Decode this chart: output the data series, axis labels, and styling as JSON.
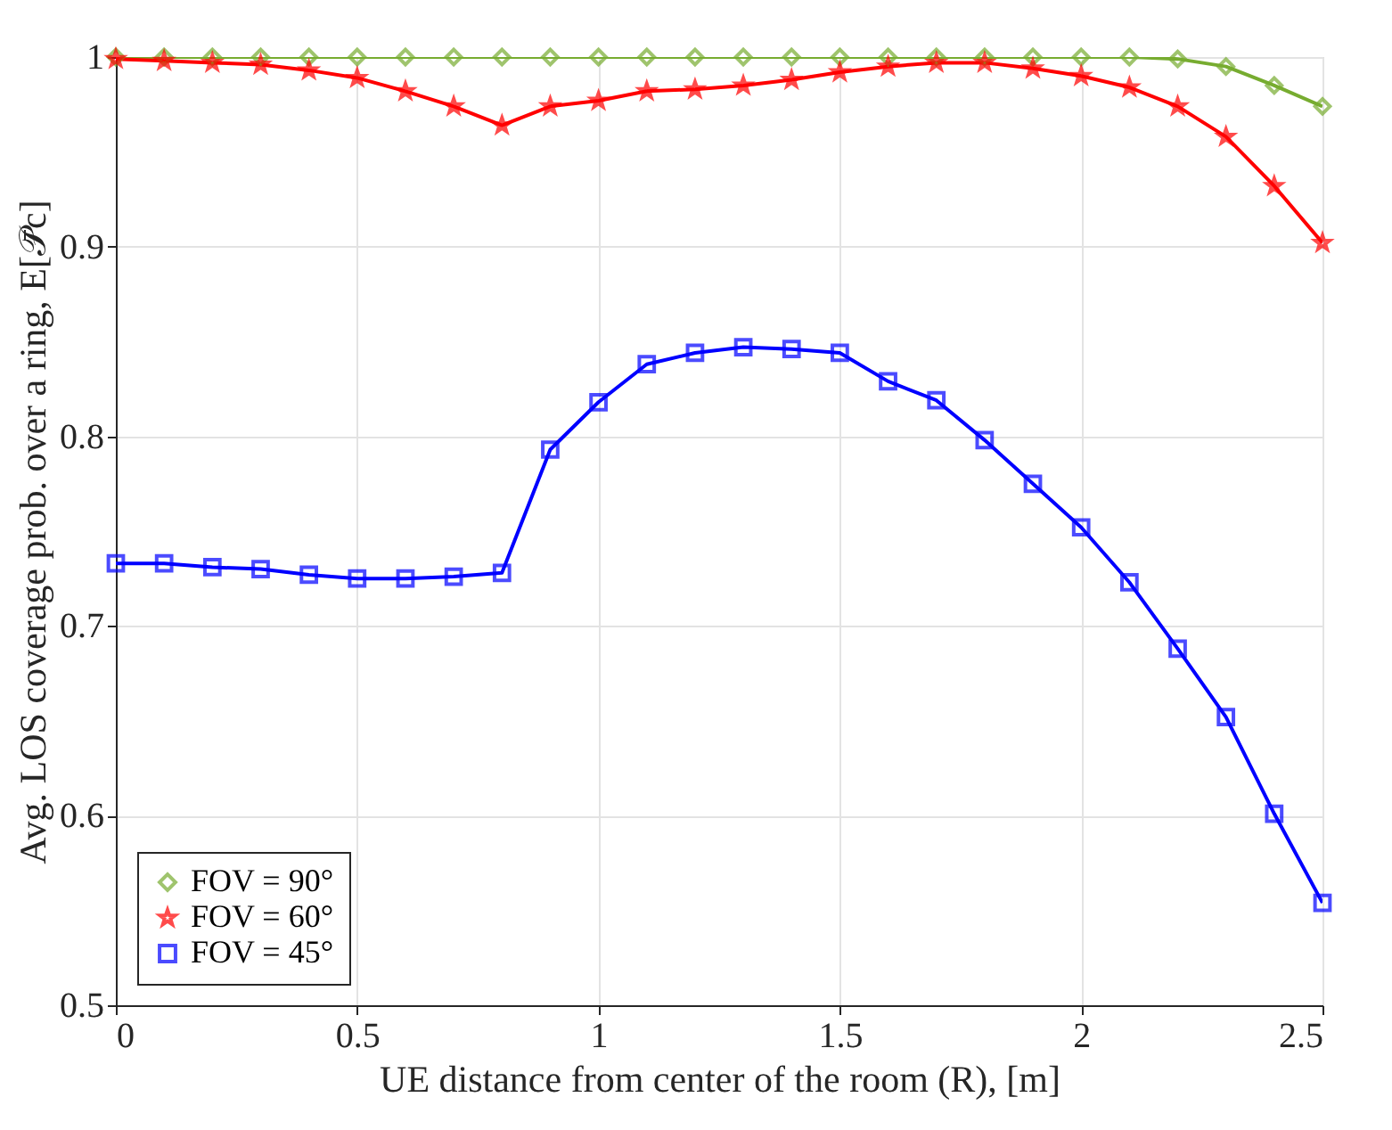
{
  "chart_data": {
    "type": "line",
    "xlabel": "UE distance from center of the room (R), [m]",
    "ylabel": "Avg. LOS coverage prob. over a ring, E[𝒫̄c]",
    "x": [
      0,
      0.1,
      0.2,
      0.3,
      0.4,
      0.5,
      0.6,
      0.7,
      0.8,
      0.9,
      1.0,
      1.1,
      1.2,
      1.3,
      1.4,
      1.5,
      1.6,
      1.7,
      1.8,
      1.9,
      2.0,
      2.1,
      2.2,
      2.3,
      2.4,
      2.5
    ],
    "series": [
      {
        "name": "FOV = 90°",
        "color": "#77ac30",
        "marker": "diamond",
        "values": [
          1.0,
          1.0,
          1.0,
          1.0,
          1.0,
          1.0,
          1.0,
          1.0,
          1.0,
          1.0,
          1.0,
          1.0,
          1.0,
          1.0,
          1.0,
          1.0,
          1.0,
          1.0,
          1.0,
          1.0,
          1.0,
          1.0,
          0.999,
          0.995,
          0.985,
          0.974
        ]
      },
      {
        "name": "FOV = 60°",
        "color": "#ff0000",
        "marker": "star",
        "values": [
          0.999,
          0.998,
          0.997,
          0.996,
          0.993,
          0.989,
          0.982,
          0.974,
          0.964,
          0.974,
          0.977,
          0.982,
          0.983,
          0.985,
          0.988,
          0.992,
          0.995,
          0.997,
          0.997,
          0.994,
          0.99,
          0.984,
          0.974,
          0.958,
          0.932,
          0.902
        ]
      },
      {
        "name": "FOV = 45°",
        "color": "#0000ff",
        "marker": "square",
        "values": [
          0.733,
          0.733,
          0.731,
          0.73,
          0.727,
          0.725,
          0.725,
          0.726,
          0.728,
          0.793,
          0.818,
          0.838,
          0.844,
          0.847,
          0.846,
          0.844,
          0.829,
          0.819,
          0.798,
          0.775,
          0.752,
          0.723,
          0.688,
          0.652,
          0.601,
          0.554
        ]
      }
    ],
    "xlim": [
      0,
      2.5
    ],
    "xticks": [
      0,
      0.5,
      1,
      1.5,
      2,
      2.5
    ],
    "ylim": [
      0.5,
      1
    ],
    "yticks": [
      0.5,
      0.6,
      0.7,
      0.8,
      0.9,
      1
    ],
    "grid": true,
    "legend": "bottom left",
    "line_style": "solid"
  }
}
